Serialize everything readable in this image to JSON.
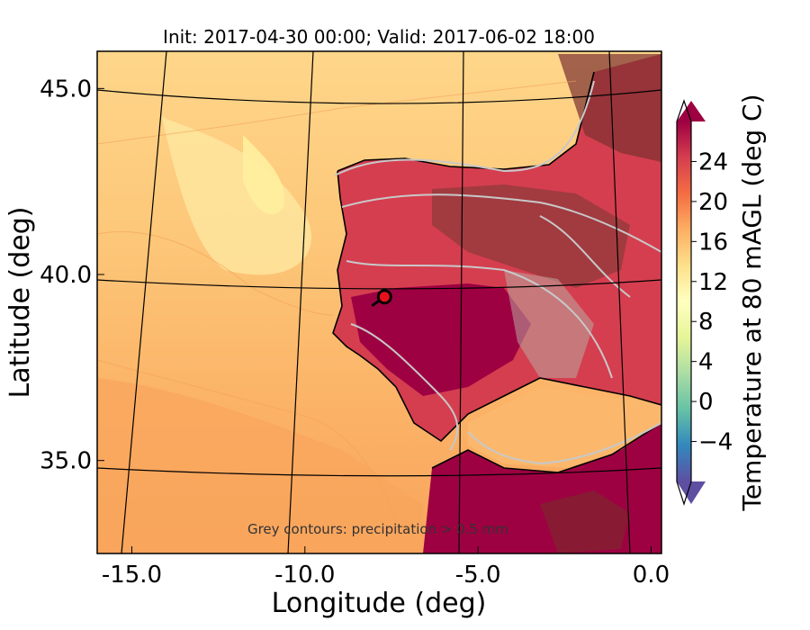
{
  "chart_data": {
    "type": "heatmap",
    "title": "Init: 2017-04-30 00:00; Valid: 2017-06-02 18:00",
    "xlabel": "Longitude (deg)",
    "ylabel": "Latitude (deg)",
    "xlim": [
      -16.0,
      0.3
    ],
    "ylim": [
      32.5,
      46.0
    ],
    "x_ticks": [
      {
        "value": -15.0,
        "label": "-15.0"
      },
      {
        "value": -10.0,
        "label": "-10.0"
      },
      {
        "value": -5.0,
        "label": "-5.0"
      },
      {
        "value": 0.0,
        "label": "0.0"
      }
    ],
    "y_ticks": [
      {
        "value": 35.0,
        "label": "35.0"
      },
      {
        "value": 40.0,
        "label": "40.0"
      },
      {
        "value": 45.0,
        "label": "45.0"
      }
    ],
    "annotation": "Grey contours: precipitation > 0.5 mm",
    "marker": {
      "lon": -7.7,
      "lat": 39.4
    },
    "colorbar": {
      "label": "Temperature at 80 mAGL (deg C)",
      "min": -8,
      "max": 28,
      "ticks": [
        {
          "value": 24,
          "label": "24"
        },
        {
          "value": 20,
          "label": "20"
        },
        {
          "value": 16,
          "label": "16"
        },
        {
          "value": 12,
          "label": "12"
        },
        {
          "value": 8,
          "label": "8"
        },
        {
          "value": 4,
          "label": "4"
        },
        {
          "value": 0,
          "label": "0"
        },
        {
          "value": -4,
          "label": "−4"
        }
      ],
      "colormap": [
        "#5e4fa2",
        "#3288bd",
        "#66c2a5",
        "#abdda4",
        "#e6f598",
        "#ffffbf",
        "#fee08b",
        "#fdae61",
        "#f46d43",
        "#d53e4f",
        "#9e0142"
      ]
    }
  }
}
